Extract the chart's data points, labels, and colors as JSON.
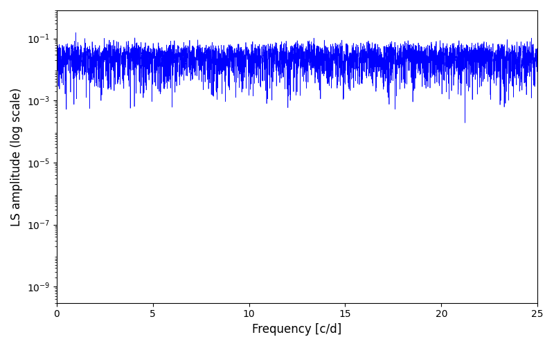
{
  "xlabel": "Frequency [c/d]",
  "ylabel": "LS amplitude (log scale)",
  "xlim": [
    0,
    25
  ],
  "ylim": [
    3e-10,
    0.8
  ],
  "yscale": "log",
  "line_color": "#0000ff",
  "line_width": 0.5,
  "figsize": [
    8.0,
    5.0
  ],
  "dpi": 100,
  "freq_max": 25.0,
  "n_points": 25000,
  "seed": 7,
  "noise_floor": 3e-06,
  "yticks": [
    1e-09,
    1e-07,
    1e-05,
    0.001,
    0.1
  ]
}
